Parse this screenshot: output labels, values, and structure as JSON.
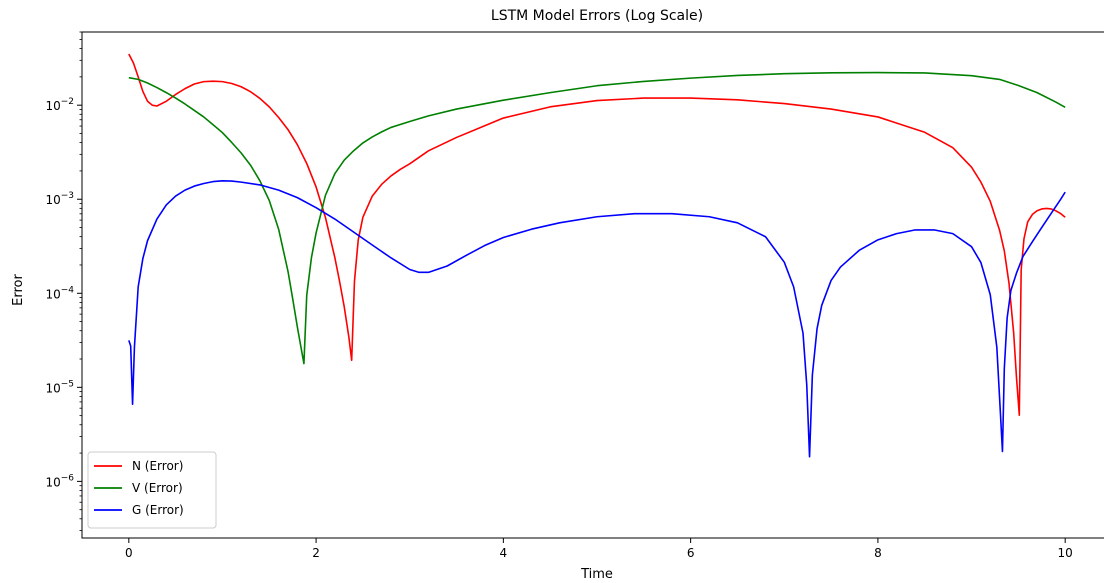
{
  "chart_data": {
    "type": "line",
    "title": "LSTM Model Errors (Log Scale)",
    "xlabel": "Time",
    "ylabel": "Error",
    "xlim": [
      -0.5,
      10.5
    ],
    "ylim": [
      2.5e-07,
      0.06
    ],
    "yscale": "log",
    "grid": false,
    "legend_position": "lower-left",
    "x_ticks": [
      0,
      2,
      4,
      6,
      8,
      10
    ],
    "x_tick_labels": [
      "0",
      "2",
      "4",
      "6",
      "8",
      "10"
    ],
    "y_ticks": [
      1e-06,
      1e-05,
      0.0001,
      0.001,
      0.01
    ],
    "y_tick_labels": [
      {
        "base": "10",
        "exp": "−6"
      },
      {
        "base": "10",
        "exp": "−5"
      },
      {
        "base": "10",
        "exp": "−4"
      },
      {
        "base": "10",
        "exp": "−3"
      },
      {
        "base": "10",
        "exp": "−2"
      }
    ],
    "series": [
      {
        "name": "N (Error)",
        "color": "#ff0000",
        "x": [
          0,
          0.05,
          0.1,
          0.15,
          0.2,
          0.25,
          0.3,
          0.4,
          0.5,
          0.6,
          0.7,
          0.8,
          0.9,
          1.0,
          1.1,
          1.2,
          1.3,
          1.4,
          1.5,
          1.6,
          1.7,
          1.8,
          1.9,
          2.0,
          2.1,
          2.2,
          2.25,
          2.3,
          2.35,
          2.38,
          2.41,
          2.45,
          2.5,
          2.6,
          2.7,
          2.8,
          2.9,
          3.0,
          3.2,
          3.5,
          4.0,
          4.5,
          5.0,
          5.5,
          6.0,
          6.5,
          7.0,
          7.5,
          8.0,
          8.5,
          8.8,
          9.0,
          9.1,
          9.2,
          9.3,
          9.35,
          9.4,
          9.45,
          9.48,
          9.51,
          9.53,
          9.56,
          9.6,
          9.65,
          9.7,
          9.75,
          9.8,
          9.85,
          9.9,
          9.95,
          10.0
        ],
        "y": [
          0.035,
          0.028,
          0.02,
          0.014,
          0.011,
          0.01,
          0.0098,
          0.011,
          0.013,
          0.015,
          0.0168,
          0.0178,
          0.018,
          0.0178,
          0.017,
          0.0157,
          0.0139,
          0.0118,
          0.0096,
          0.0074,
          0.0055,
          0.0038,
          0.0024,
          0.00135,
          0.00064,
          0.00024,
          0.000135,
          7.23e-05,
          3.42e-05,
          1.94e-05,
          0.000135,
          0.000369,
          0.000644,
          0.00108,
          0.00144,
          0.00177,
          0.00208,
          0.00238,
          0.00327,
          0.00454,
          0.0073,
          0.0096,
          0.0112,
          0.0119,
          0.0119,
          0.0114,
          0.0104,
          0.0091,
          0.0075,
          0.00515,
          0.00353,
          0.00219,
          0.00152,
          0.00095,
          0.000465,
          0.000282,
          0.000128,
          3.77e-05,
          1.27e-05,
          5.05e-06,
          0.000178,
          0.00038,
          0.000576,
          0.00069,
          0.000754,
          0.000788,
          0.000798,
          0.000788,
          0.000754,
          0.000706,
          0.000644
        ]
      },
      {
        "name": "V (Error)",
        "color": "#008000",
        "x": [
          0,
          0.1,
          0.2,
          0.3,
          0.4,
          0.5,
          0.6,
          0.7,
          0.8,
          0.9,
          1.0,
          1.1,
          1.2,
          1.3,
          1.4,
          1.5,
          1.6,
          1.7,
          1.75,
          1.8,
          1.84,
          1.87,
          1.9,
          1.95,
          2.0,
          2.1,
          2.2,
          2.3,
          2.4,
          2.5,
          2.6,
          2.7,
          2.8,
          3.0,
          3.2,
          3.5,
          4.0,
          4.5,
          5.0,
          5.5,
          6.0,
          6.5,
          7.0,
          7.5,
          8.0,
          8.5,
          9.0,
          9.3,
          9.5,
          9.7,
          9.9,
          10.0
        ],
        "y": [
          0.0196,
          0.0188,
          0.0172,
          0.0154,
          0.0136,
          0.0119,
          0.0103,
          0.0088,
          0.0075,
          0.0062,
          0.0051,
          0.004,
          0.0031,
          0.0023,
          0.00157,
          0.00097,
          0.00048,
          0.000171,
          8.76e-05,
          4.38e-05,
          2.62e-05,
          1.79e-05,
          9.5e-05,
          0.000238,
          0.000438,
          0.0011,
          0.00187,
          0.0026,
          0.00327,
          0.00397,
          0.0046,
          0.0052,
          0.0058,
          0.0067,
          0.0077,
          0.0091,
          0.0113,
          0.0136,
          0.0161,
          0.0179,
          0.0194,
          0.0207,
          0.0216,
          0.0221,
          0.0222,
          0.022,
          0.0206,
          0.0188,
          0.0162,
          0.0136,
          0.0108,
          0.0095
        ]
      },
      {
        "name": "G (Error)",
        "color": "#0000ff",
        "x": [
          0,
          0.02,
          0.04,
          0.06,
          0.1,
          0.15,
          0.2,
          0.3,
          0.4,
          0.5,
          0.6,
          0.7,
          0.8,
          0.9,
          1.0,
          1.1,
          1.2,
          1.4,
          1.6,
          1.8,
          2.0,
          2.2,
          2.4,
          2.6,
          2.8,
          3.0,
          3.1,
          3.2,
          3.4,
          3.6,
          3.8,
          4.0,
          4.3,
          4.6,
          5.0,
          5.4,
          5.8,
          6.2,
          6.5,
          6.8,
          7.0,
          7.1,
          7.2,
          7.24,
          7.27,
          7.3,
          7.35,
          7.4,
          7.5,
          7.6,
          7.8,
          8.0,
          8.2,
          8.4,
          8.6,
          8.8,
          9.0,
          9.1,
          9.2,
          9.27,
          9.31,
          9.33,
          9.35,
          9.38,
          9.42,
          9.48,
          9.55,
          9.65,
          9.75,
          9.85,
          9.95,
          10.0
        ],
        "y": [
          3.16e-05,
          2.75e-05,
          6.61e-06,
          2.69e-05,
          0.000117,
          0.000234,
          0.000363,
          0.000616,
          0.000869,
          0.00108,
          0.00125,
          0.00138,
          0.00147,
          0.00154,
          0.00157,
          0.00156,
          0.00152,
          0.00142,
          0.00125,
          0.00104,
          0.000813,
          0.000616,
          0.000448,
          0.000326,
          0.000238,
          0.000179,
          0.000167,
          0.000167,
          0.000195,
          0.000252,
          0.000322,
          0.000392,
          0.00048,
          0.000561,
          0.000651,
          0.000702,
          0.000702,
          0.000651,
          0.000561,
          0.000399,
          0.000214,
          0.000117,
          3.77e-05,
          1.06e-05,
          1.83e-06,
          1.35e-05,
          4.2e-05,
          7.45e-05,
          0.000137,
          0.00019,
          0.000286,
          0.00037,
          0.000431,
          0.000472,
          0.000472,
          0.000431,
          0.000313,
          0.000212,
          9.65e-05,
          2.67e-05,
          4.94e-06,
          2.08e-06,
          1.59e-05,
          5.45e-05,
          0.000107,
          0.000164,
          0.000247,
          0.000354,
          0.000502,
          0.000706,
          0.000991,
          0.00119
        ]
      }
    ]
  }
}
